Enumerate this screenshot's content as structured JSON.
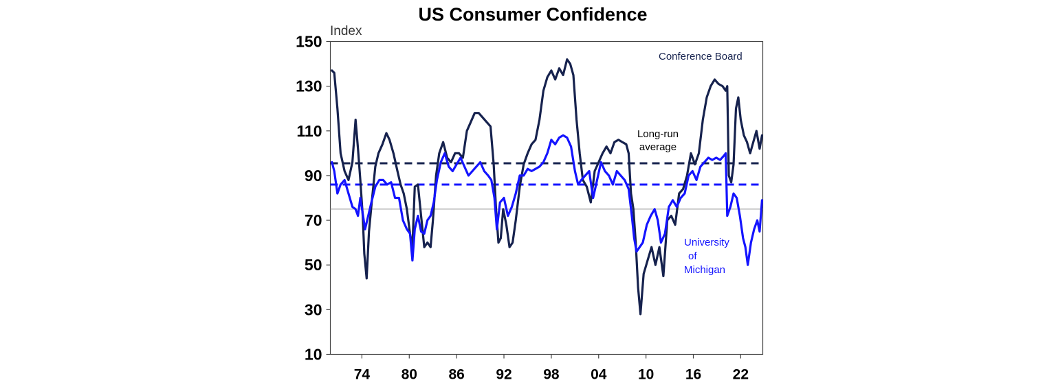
{
  "chart_data": {
    "type": "line",
    "title": "US Consumer Confidence",
    "ylabel": "Index",
    "xlabel": "",
    "ylim": [
      10,
      150
    ],
    "yticks": [
      10,
      30,
      50,
      70,
      90,
      110,
      130,
      150
    ],
    "xlim": [
      1970.0,
      2024.8
    ],
    "xticks": [
      {
        "value": 1974,
        "label": "74"
      },
      {
        "value": 1980,
        "label": "80"
      },
      {
        "value": 1986,
        "label": "86"
      },
      {
        "value": 1992,
        "label": "92"
      },
      {
        "value": 1998,
        "label": "98"
      },
      {
        "value": 2004,
        "label": "04"
      },
      {
        "value": 2010,
        "label": "10"
      },
      {
        "value": 2016,
        "label": "16"
      },
      {
        "value": 2022,
        "label": "22"
      }
    ],
    "reference_lines": [
      {
        "name": "Long-run average (Conference Board)",
        "value": 95.5,
        "style": "dashed",
        "color": "#16224E"
      },
      {
        "name": "Long-run average (University of Michigan)",
        "value": 86,
        "style": "dashed",
        "color": "#1414FF"
      },
      {
        "name": "Neutral level",
        "value": 75,
        "style": "solid",
        "color": "#A0A0A0"
      }
    ],
    "annotations": {
      "conference_board": "Conference Board",
      "long_run_line1": "Long-run",
      "long_run_line2": "average",
      "michigan_line1": "University",
      "michigan_line2": "of",
      "michigan_line3": "Michigan"
    },
    "series": [
      {
        "name": "Conference Board",
        "color": "#16224E",
        "x": [
          1970.2,
          1970.5,
          1970.9,
          1971.3,
          1971.8,
          1972.3,
          1972.8,
          1973.2,
          1973.5,
          1973.8,
          1974.1,
          1974.3,
          1974.6,
          1974.9,
          1975.3,
          1975.7,
          1976.1,
          1976.6,
          1977.1,
          1977.5,
          1978.0,
          1978.5,
          1978.9,
          1979.3,
          1979.7,
          1980.1,
          1980.4,
          1980.7,
          1981.1,
          1981.5,
          1981.9,
          1982.3,
          1982.7,
          1983.0,
          1983.4,
          1983.8,
          1984.3,
          1984.8,
          1985.3,
          1985.8,
          1986.3,
          1986.8,
          1987.3,
          1987.8,
          1988.3,
          1988.8,
          1989.3,
          1989.8,
          1990.3,
          1990.7,
          1991.0,
          1991.3,
          1991.6,
          1991.9,
          1992.3,
          1992.7,
          1993.1,
          1993.5,
          1994.0,
          1994.5,
          1995.0,
          1995.5,
          1996.0,
          1996.5,
          1997.0,
          1997.5,
          1998.0,
          1998.5,
          1999.0,
          1999.5,
          2000.0,
          2000.4,
          2000.8,
          2001.2,
          2001.6,
          2002.0,
          2002.5,
          2003.0,
          2003.5,
          2004.0,
          2004.5,
          2005.0,
          2005.5,
          2006.0,
          2006.5,
          2007.0,
          2007.5,
          2007.8,
          2008.1,
          2008.4,
          2008.7,
          2009.0,
          2009.3,
          2009.7,
          2010.2,
          2010.7,
          2011.2,
          2011.7,
          2012.2,
          2012.7,
          2013.2,
          2013.7,
          2014.2,
          2014.7,
          2015.2,
          2015.7,
          2016.2,
          2016.7,
          2017.2,
          2017.7,
          2018.2,
          2018.7,
          2019.2,
          2019.7,
          2020.1,
          2020.3,
          2020.5,
          2020.8,
          2021.1,
          2021.4,
          2021.7,
          2022.0,
          2022.4,
          2022.8,
          2023.2,
          2023.6,
          2024.0,
          2024.4,
          2024.7
        ],
        "values": [
          137,
          136,
          120,
          100,
          92,
          88,
          96,
          115,
          102,
          88,
          72,
          55,
          44,
          65,
          80,
          94,
          100,
          104,
          109,
          106,
          100,
          92,
          86,
          82,
          75,
          64,
          58,
          85,
          86,
          72,
          58,
          60,
          58,
          70,
          90,
          100,
          105,
          98,
          96,
          100,
          100,
          98,
          110,
          114,
          118,
          118,
          116,
          114,
          112,
          95,
          75,
          60,
          62,
          75,
          68,
          58,
          60,
          70,
          85,
          95,
          100,
          104,
          106,
          115,
          128,
          134,
          137,
          133,
          138,
          135,
          142,
          140,
          135,
          115,
          100,
          88,
          85,
          78,
          92,
          96,
          100,
          103,
          100,
          105,
          106,
          105,
          104,
          100,
          82,
          75,
          60,
          40,
          28,
          46,
          52,
          58,
          50,
          58,
          45,
          70,
          72,
          68,
          82,
          84,
          90,
          100,
          95,
          100,
          115,
          125,
          130,
          133,
          131,
          130,
          128,
          130,
          90,
          87,
          95,
          120,
          125,
          115,
          108,
          105,
          100,
          105,
          110,
          102,
          108
        ]
      },
      {
        "name": "University of Michigan",
        "color": "#1414FF",
        "x": [
          1970.2,
          1970.5,
          1970.9,
          1971.3,
          1971.8,
          1972.3,
          1972.8,
          1973.2,
          1973.5,
          1973.8,
          1974.1,
          1974.4,
          1974.8,
          1975.2,
          1975.7,
          1976.2,
          1976.7,
          1977.2,
          1977.7,
          1978.2,
          1978.7,
          1979.2,
          1979.7,
          1980.1,
          1980.4,
          1980.7,
          1981.1,
          1981.5,
          1981.9,
          1982.3,
          1982.7,
          1983.1,
          1983.5,
          1984.0,
          1984.5,
          1985.0,
          1985.5,
          1986.0,
          1986.5,
          1987.0,
          1987.5,
          1988.0,
          1988.5,
          1989.0,
          1989.5,
          1990.0,
          1990.4,
          1990.8,
          1991.1,
          1991.5,
          1992.0,
          1992.5,
          1993.0,
          1993.5,
          1994.0,
          1994.5,
          1995.0,
          1995.5,
          1996.0,
          1996.5,
          1997.0,
          1997.5,
          1998.0,
          1998.5,
          1999.0,
          1999.5,
          2000.0,
          2000.5,
          2001.0,
          2001.4,
          2001.8,
          2002.3,
          2002.8,
          2003.3,
          2003.8,
          2004.3,
          2004.8,
          2005.3,
          2005.8,
          2006.3,
          2006.8,
          2007.3,
          2007.8,
          2008.2,
          2008.5,
          2008.8,
          2009.2,
          2009.6,
          2010.1,
          2010.6,
          2011.1,
          2011.5,
          2011.9,
          2012.4,
          2012.9,
          2013.4,
          2013.9,
          2014.4,
          2014.9,
          2015.4,
          2015.9,
          2016.4,
          2016.9,
          2017.4,
          2017.9,
          2018.4,
          2018.9,
          2019.4,
          2019.9,
          2020.1,
          2020.3,
          2020.7,
          2021.1,
          2021.5,
          2021.9,
          2022.3,
          2022.6,
          2022.9,
          2023.3,
          2023.7,
          2024.1,
          2024.4,
          2024.7
        ],
        "values": [
          96,
          92,
          82,
          86,
          88,
          82,
          76,
          75,
          72,
          80,
          73,
          66,
          72,
          78,
          85,
          88,
          88,
          86,
          87,
          80,
          80,
          70,
          66,
          64,
          52,
          66,
          72,
          65,
          64,
          70,
          72,
          78,
          88,
          96,
          100,
          94,
          92,
          95,
          98,
          94,
          90,
          92,
          94,
          96,
          92,
          90,
          88,
          80,
          66,
          78,
          80,
          72,
          76,
          82,
          90,
          90,
          93,
          92,
          93,
          94,
          96,
          100,
          106,
          104,
          107,
          108,
          107,
          103,
          92,
          86,
          88,
          90,
          92,
          80,
          88,
          96,
          92,
          90,
          86,
          92,
          90,
          88,
          84,
          72,
          62,
          56,
          58,
          60,
          68,
          72,
          75,
          70,
          60,
          64,
          76,
          79,
          76,
          80,
          82,
          90,
          92,
          88,
          94,
          96,
          98,
          97,
          98,
          97,
          99,
          100,
          72,
          76,
          82,
          80,
          72,
          62,
          58,
          50,
          60,
          66,
          70,
          65,
          79
        ]
      }
    ]
  }
}
